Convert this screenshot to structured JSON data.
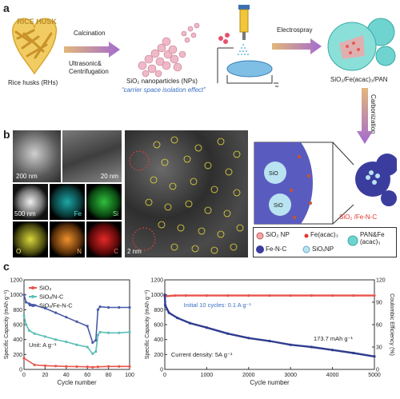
{
  "panel_a": {
    "letter": "a",
    "rice_husk_label": "Rice husks (RHs)",
    "rice_husk_logo": "RICE HUSK",
    "calcination": "Calcination",
    "ultrasonic": "Ultrasonic&",
    "centrifugation": "Centrifugation",
    "sio2_nps": "SiO₂ nanoparticles (NPs)",
    "carrier_effect": "“carrier space isolation effect”",
    "electrospray": "Electrospray",
    "product1": "SiO₂/Fe(acac)₃/PAN",
    "carbonization": "Carbonization",
    "product2": "SiO₂ /Fe-N-C",
    "sio_x_1": "SiO",
    "sio_x_2": "SiO"
  },
  "legend": {
    "items": [
      "SiO₂ NP",
      "Fe(acac)₃",
      "PAN&Fe (acac)₃",
      "Fe-N-C",
      "SiOₓNP"
    ]
  },
  "panel_b": {
    "letter": "b",
    "scale_200nm": "200 nm",
    "scale_20nm": "20 nm",
    "scale_500nm": "500 nm",
    "scale_2nm": "2 nm",
    "map_fe": "Fe",
    "map_si": "Si",
    "map_o": "O",
    "map_n": "N",
    "map_c": "C"
  },
  "panel_c": {
    "letter": "c"
  },
  "chart_data": [
    {
      "type": "line",
      "xlabel": "Cycle number",
      "ylabel": "Specific Capacity (mAh g⁻¹)",
      "xlim": [
        0,
        100
      ],
      "ylim": [
        0,
        1200
      ],
      "xticks": [
        0,
        20,
        40,
        60,
        80,
        100
      ],
      "yticks": [
        0,
        200,
        400,
        600,
        800,
        1000,
        1200
      ],
      "annotation": "Unit: A g⁻¹",
      "legend_position": "top-left",
      "series": [
        {
          "name": "SiO₂",
          "color": "#e8544a",
          "x": [
            0,
            10,
            20,
            30,
            40,
            50,
            60,
            65,
            70,
            80,
            90,
            100
          ],
          "y": [
            150,
            60,
            50,
            45,
            40,
            38,
            35,
            30,
            35,
            40,
            40,
            40
          ]
        },
        {
          "name": "SiOₓ/N-C",
          "color": "#5cbfb6",
          "x": [
            0,
            2,
            5,
            10,
            20,
            30,
            40,
            50,
            60,
            65,
            68,
            70,
            72,
            80,
            90,
            100
          ],
          "y": [
            720,
            600,
            520,
            480,
            440,
            400,
            370,
            330,
            300,
            210,
            240,
            460,
            500,
            490,
            490,
            500
          ]
        },
        {
          "name": "SiOₓ/Fe-N-C",
          "color": "#4a5aa8",
          "x": [
            0,
            2,
            5,
            10,
            20,
            30,
            40,
            50,
            60,
            65,
            68,
            70,
            72,
            80,
            90,
            100
          ],
          "y": [
            1000,
            900,
            880,
            860,
            820,
            760,
            700,
            640,
            580,
            360,
            390,
            800,
            840,
            830,
            830,
            830
          ]
        }
      ]
    },
    {
      "type": "scatter",
      "xlabel": "Cycle number",
      "ylabel": "Specific Capacity (mAh g⁻¹)",
      "y2label": "Coulombic Efficiency (%)",
      "xlim": [
        0,
        5000
      ],
      "ylim": [
        0,
        1200
      ],
      "y2lim": [
        0,
        120
      ],
      "xticks": [
        0,
        1000,
        2000,
        3000,
        4000,
        5000
      ],
      "yticks": [
        0,
        200,
        400,
        600,
        800,
        1000,
        1200
      ],
      "y2ticks": [
        0,
        30,
        60,
        90,
        120
      ],
      "annotations": [
        "Initial 10 cycles: 0.1 A g⁻¹",
        "173.7 mAh g⁻¹",
        "Current density: 5A g⁻¹"
      ],
      "series": [
        {
          "name": "Coulombic Efficiency",
          "color": "#e8544a",
          "axis": "right",
          "x": [
            0,
            250,
            500,
            1000,
            1500,
            2000,
            2500,
            3000,
            3500,
            4000,
            4500,
            5000
          ],
          "y": [
            98,
            99,
            99,
            99,
            99,
            99,
            99,
            99,
            99,
            99,
            99,
            99
          ]
        },
        {
          "name": "Specific Capacity",
          "color": "#2f3c8f",
          "axis": "left",
          "x": [
            0,
            10,
            100,
            300,
            600,
            1000,
            1500,
            2000,
            2500,
            3000,
            3500,
            4000,
            4500,
            5000
          ],
          "y": [
            1000,
            860,
            760,
            690,
            620,
            560,
            480,
            420,
            380,
            330,
            300,
            260,
            220,
            174
          ]
        }
      ]
    }
  ]
}
